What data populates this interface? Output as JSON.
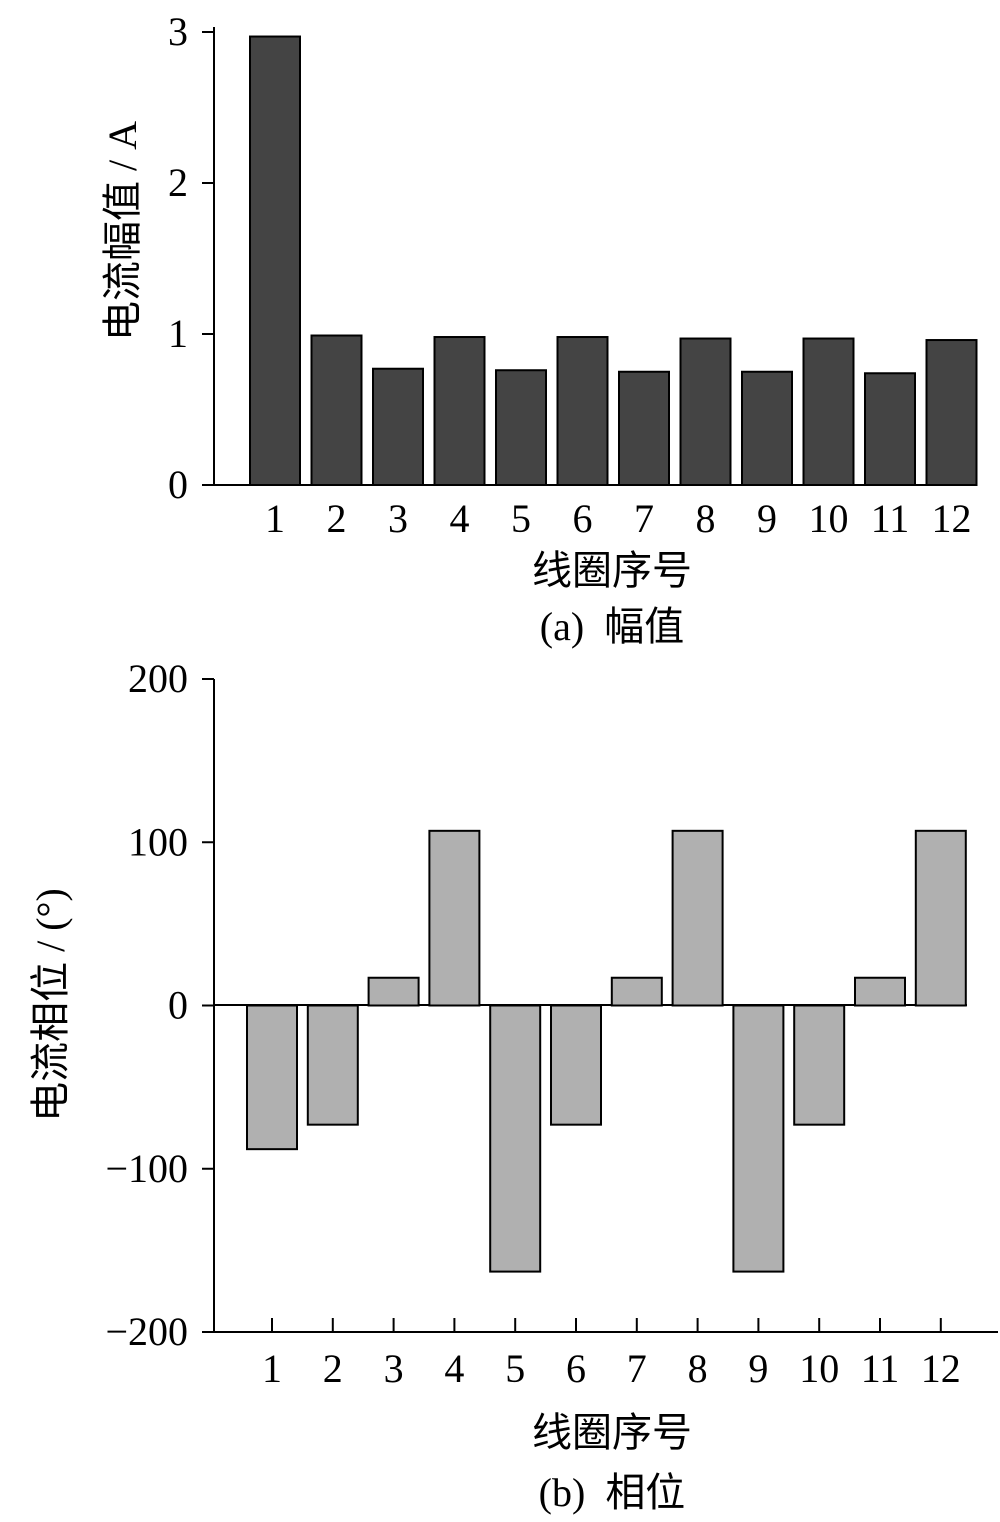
{
  "chart_data": [
    {
      "type": "bar",
      "title": "",
      "caption": "(a)  幅值",
      "xlabel": "线圈序号",
      "ylabel": "电流幅值 / A",
      "categories": [
        "1",
        "2",
        "3",
        "4",
        "5",
        "6",
        "7",
        "8",
        "9",
        "10",
        "11",
        "12"
      ],
      "values": [
        2.97,
        0.99,
        0.77,
        0.98,
        0.76,
        0.98,
        0.75,
        0.97,
        0.75,
        0.97,
        0.74,
        0.96
      ],
      "ylim": [
        0,
        3
      ],
      "yticks": [
        0,
        1,
        2,
        3
      ],
      "ytick_labels": [
        "0",
        "1",
        "2",
        "3"
      ],
      "grid": false,
      "colors": {
        "bar_fill": "#444444",
        "bar_stroke": "#000000"
      }
    },
    {
      "type": "bar",
      "title": "",
      "caption": "(b)  相位",
      "xlabel": "线圈序号",
      "ylabel": "电流相位 / (°)",
      "categories": [
        "1",
        "2",
        "3",
        "4",
        "5",
        "6",
        "7",
        "8",
        "9",
        "10",
        "11",
        "12"
      ],
      "values": [
        -88,
        -73,
        17,
        107,
        -163,
        -73,
        17,
        107,
        -163,
        -73,
        17,
        107
      ],
      "ylim": [
        -200,
        200
      ],
      "yticks": [
        -200,
        -100,
        0,
        100,
        200
      ],
      "ytick_labels": [
        "−200",
        "−100",
        "0",
        "100",
        "200"
      ],
      "grid": false,
      "colors": {
        "bar_fill": "#b0b0b0",
        "bar_stroke": "#000000"
      }
    }
  ]
}
